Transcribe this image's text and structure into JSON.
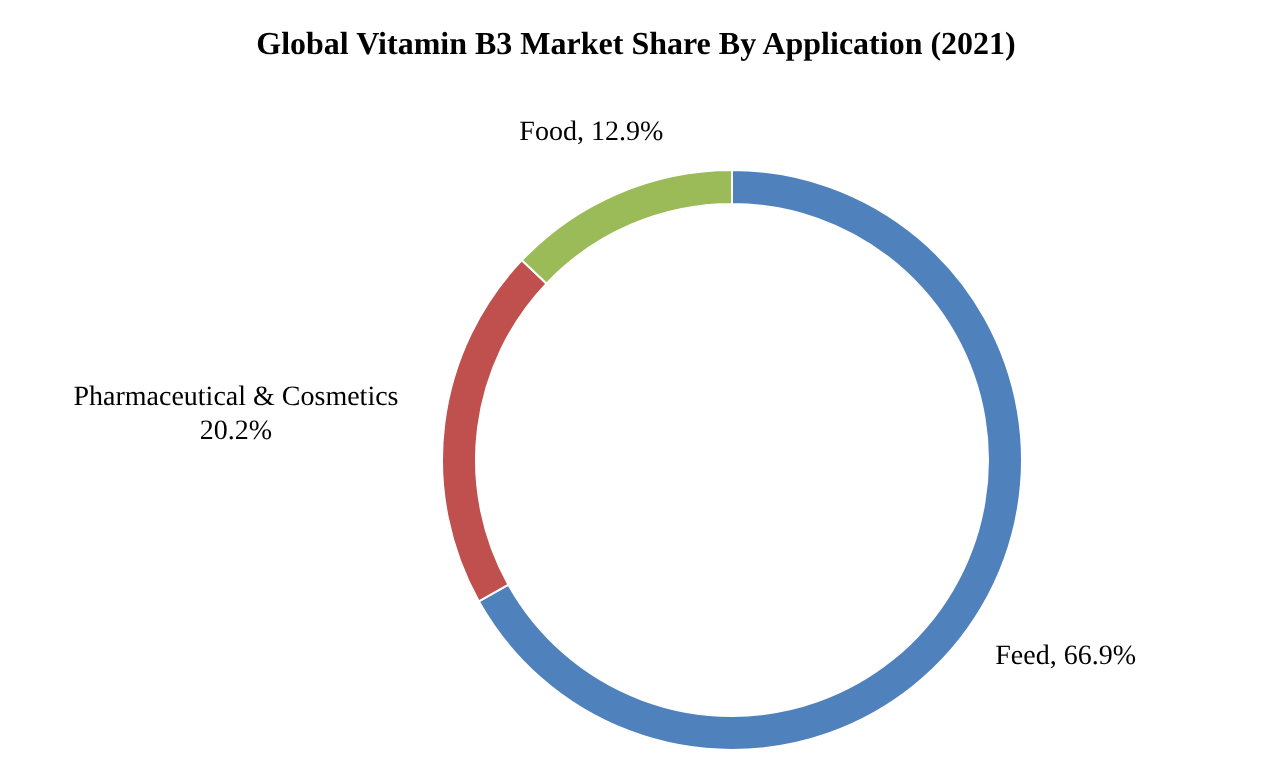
{
  "chart_data": {
    "type": "donut",
    "title": "Global Vitamin B3 Market Share By Application (2021)",
    "categories": [
      "Feed",
      "Pharmaceutical & Cosmetics",
      "Food"
    ],
    "values": [
      66.9,
      20.2,
      12.9
    ],
    "colors": [
      "#4f81bd",
      "#c0504d",
      "#9bbb59"
    ],
    "value_labels": [
      "66.9%",
      "20.2%",
      "12.9%"
    ]
  }
}
